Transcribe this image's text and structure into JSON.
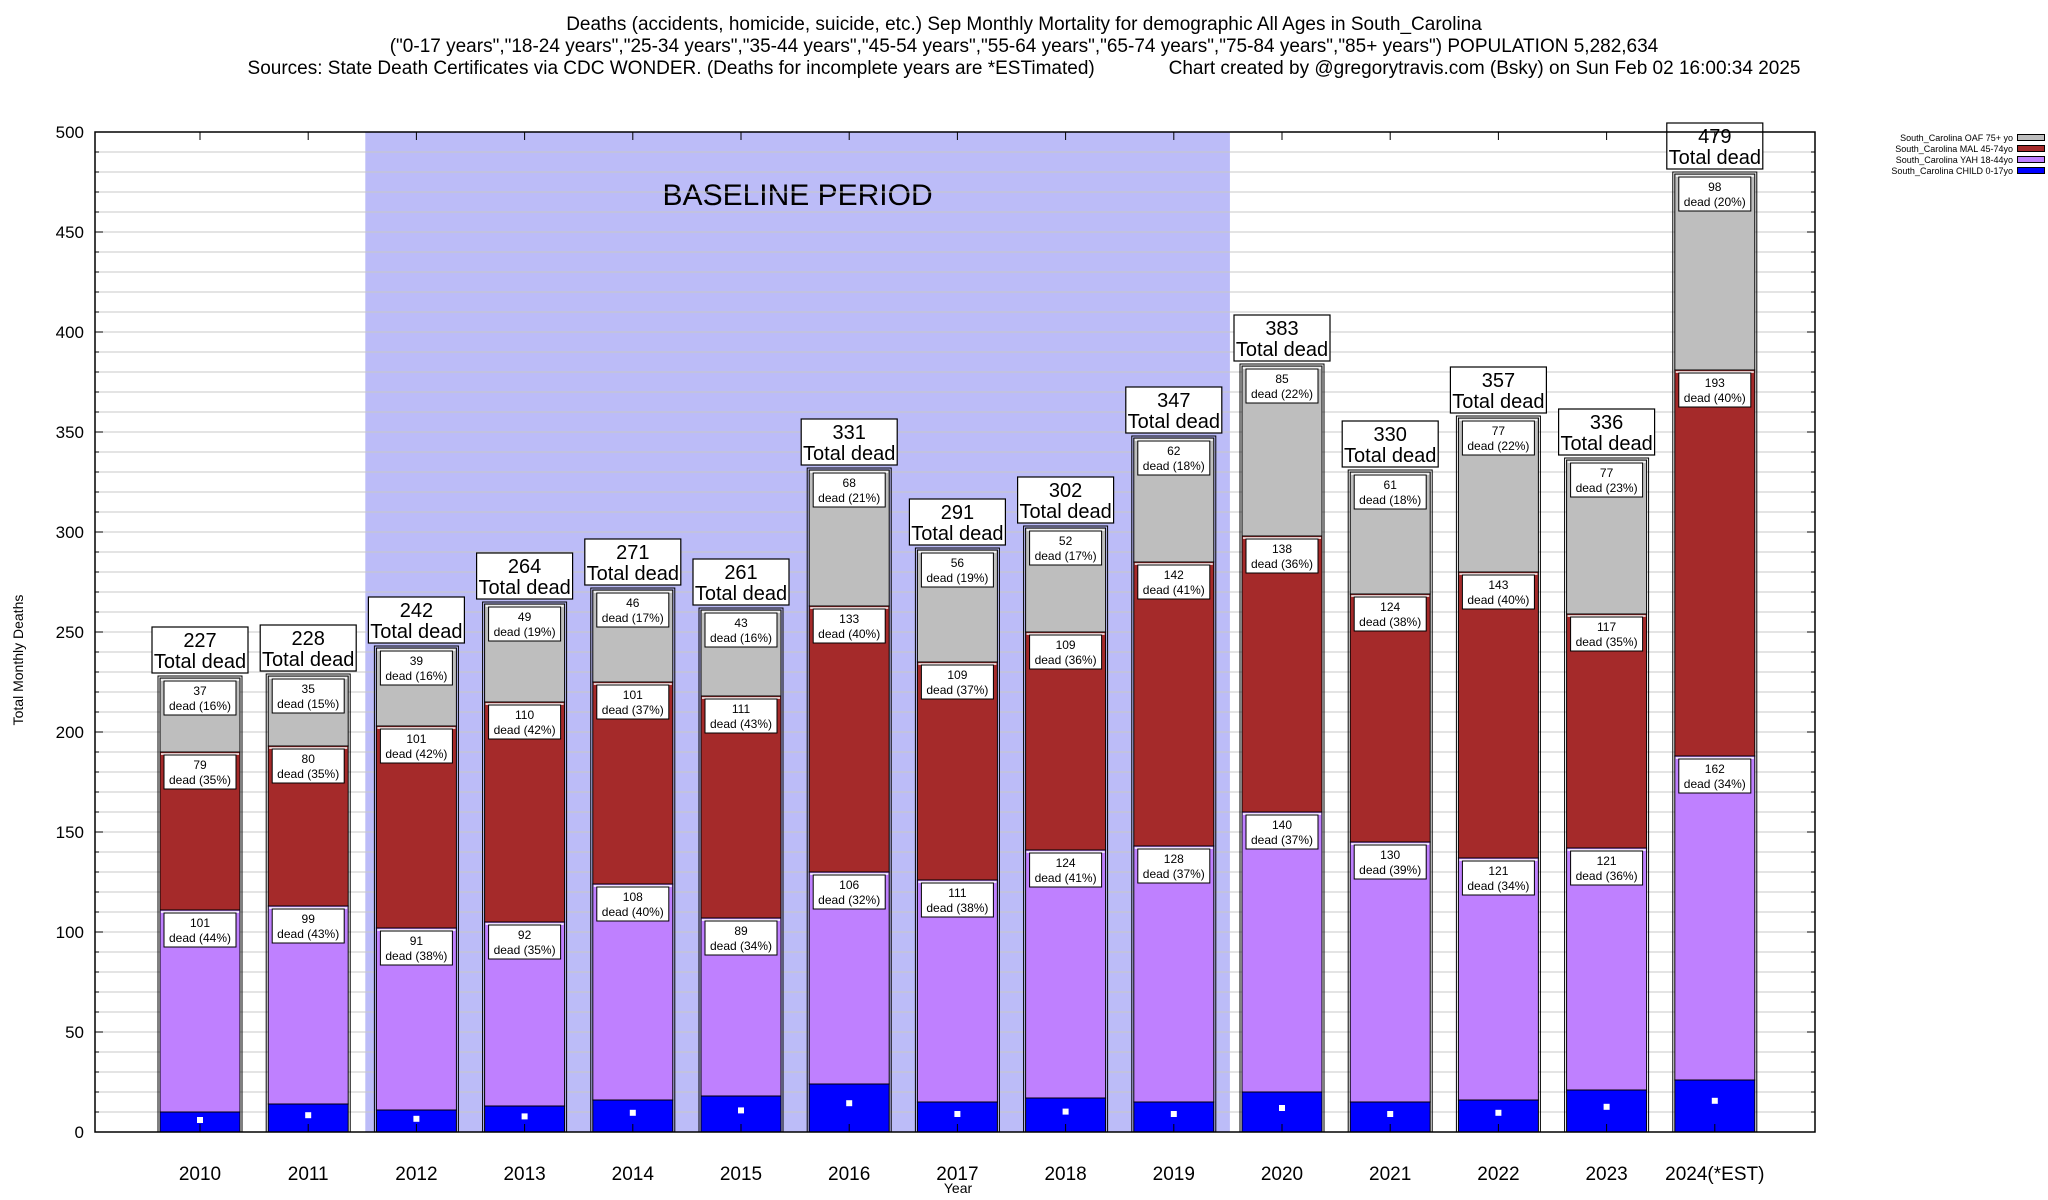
{
  "header": {
    "line1": "Deaths (accidents, homicide, suicide, etc.) Sep Monthly Mortality for demographic All Ages in South_Carolina",
    "line2": "(\"0-17 years\",\"18-24 years\",\"25-34 years\",\"35-44 years\",\"45-54 years\",\"55-64 years\",\"65-74 years\",\"75-84 years\",\"85+ years\") POPULATION 5,282,634",
    "line3": "Sources: State Death Certificates via CDC WONDER. (Deaths for incomplete years are *ESTimated)              Chart created by @gregorytravis.com (Bsky) on Sun Feb 02 16:00:34 2025"
  },
  "chart_data": {
    "type": "bar",
    "stacked": true,
    "xlabel": "Year",
    "ylabel": "Total Monthly Deaths",
    "ylim": [
      0,
      500
    ],
    "yticks": [
      0,
      50,
      100,
      150,
      200,
      250,
      300,
      350,
      400,
      450,
      500
    ],
    "categories": [
      "2010",
      "2011",
      "2012",
      "2013",
      "2014",
      "2015",
      "2016",
      "2017",
      "2018",
      "2019",
      "2020",
      "2021",
      "2022",
      "2023",
      "2024(*EST)"
    ],
    "baseline": {
      "label": "BASELINE PERIOD",
      "start": "2012",
      "end": "2019",
      "color": "#bcbcf8"
    },
    "total_label_suffix": "Total dead",
    "segment_label_word": "dead",
    "totals": [
      227,
      228,
      242,
      264,
      271,
      261,
      331,
      291,
      302,
      347,
      383,
      330,
      357,
      336,
      479
    ],
    "series": [
      {
        "name": "South_Carolina CHILD 0-17yo",
        "color": "#0000ff",
        "values": [
          10,
          14,
          11,
          13,
          16,
          18,
          24,
          15,
          17,
          15,
          20,
          15,
          16,
          21,
          26
        ]
      },
      {
        "name": "South_Carolina YAH 18-44yo",
        "color": "#bf80ff",
        "values": [
          101,
          99,
          91,
          92,
          108,
          89,
          106,
          111,
          124,
          128,
          140,
          130,
          121,
          121,
          162
        ],
        "pct": [
          "44%",
          "43%",
          "38%",
          "35%",
          "40%",
          "34%",
          "32%",
          "38%",
          "41%",
          "37%",
          "37%",
          "39%",
          "34%",
          "36%",
          "34%"
        ]
      },
      {
        "name": "South_Carolina MAL 45-74yo",
        "color": "#a52a2a",
        "values": [
          79,
          80,
          101,
          110,
          101,
          111,
          133,
          109,
          109,
          142,
          138,
          124,
          143,
          117,
          193
        ],
        "pct": [
          "35%",
          "35%",
          "42%",
          "42%",
          "37%",
          "43%",
          "40%",
          "37%",
          "36%",
          "41%",
          "36%",
          "38%",
          "40%",
          "35%",
          "40%"
        ]
      },
      {
        "name": "South_Carolina OAF 75+ yo",
        "color": "#bebebe",
        "values": [
          37,
          35,
          39,
          49,
          46,
          43,
          68,
          56,
          52,
          62,
          85,
          61,
          77,
          77,
          98
        ],
        "pct": [
          "16%",
          "15%",
          "16%",
          "19%",
          "17%",
          "16%",
          "21%",
          "19%",
          "17%",
          "18%",
          "22%",
          "18%",
          "22%",
          "23%",
          "20%"
        ]
      }
    ]
  }
}
